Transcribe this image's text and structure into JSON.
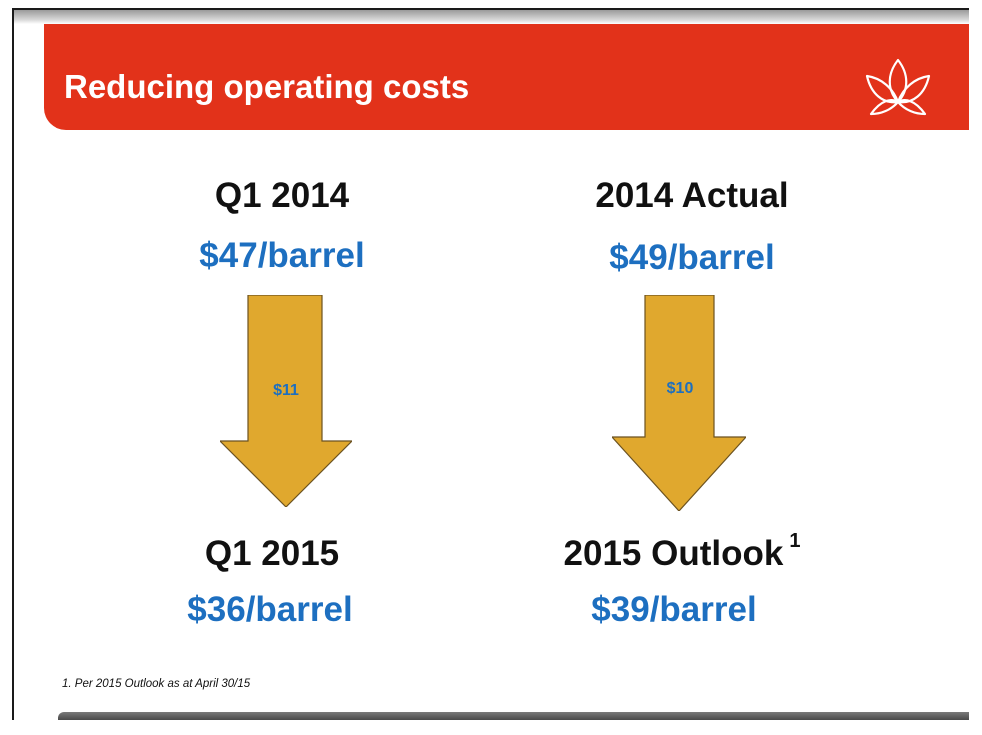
{
  "header": {
    "title": "Reducing operating costs",
    "accent_color": "#e2321a",
    "logo_icon": "lotus-flower-icon"
  },
  "left_column": {
    "heading": "Q1 2014",
    "price": "$47/barrel",
    "reduction": "$11",
    "result_heading": "Q1 2015",
    "result_price": "$36/barrel"
  },
  "right_column": {
    "heading": "2014 Actual",
    "price": "$49/barrel",
    "reduction": "$10",
    "result_heading": "2015 Outlook",
    "result_superscript": "1",
    "result_price": "$39/barrel"
  },
  "arrow_color": "#e0a82e",
  "price_color": "#1d6fc0",
  "footnote": "1. Per 2015 Outlook as at April 30/15"
}
